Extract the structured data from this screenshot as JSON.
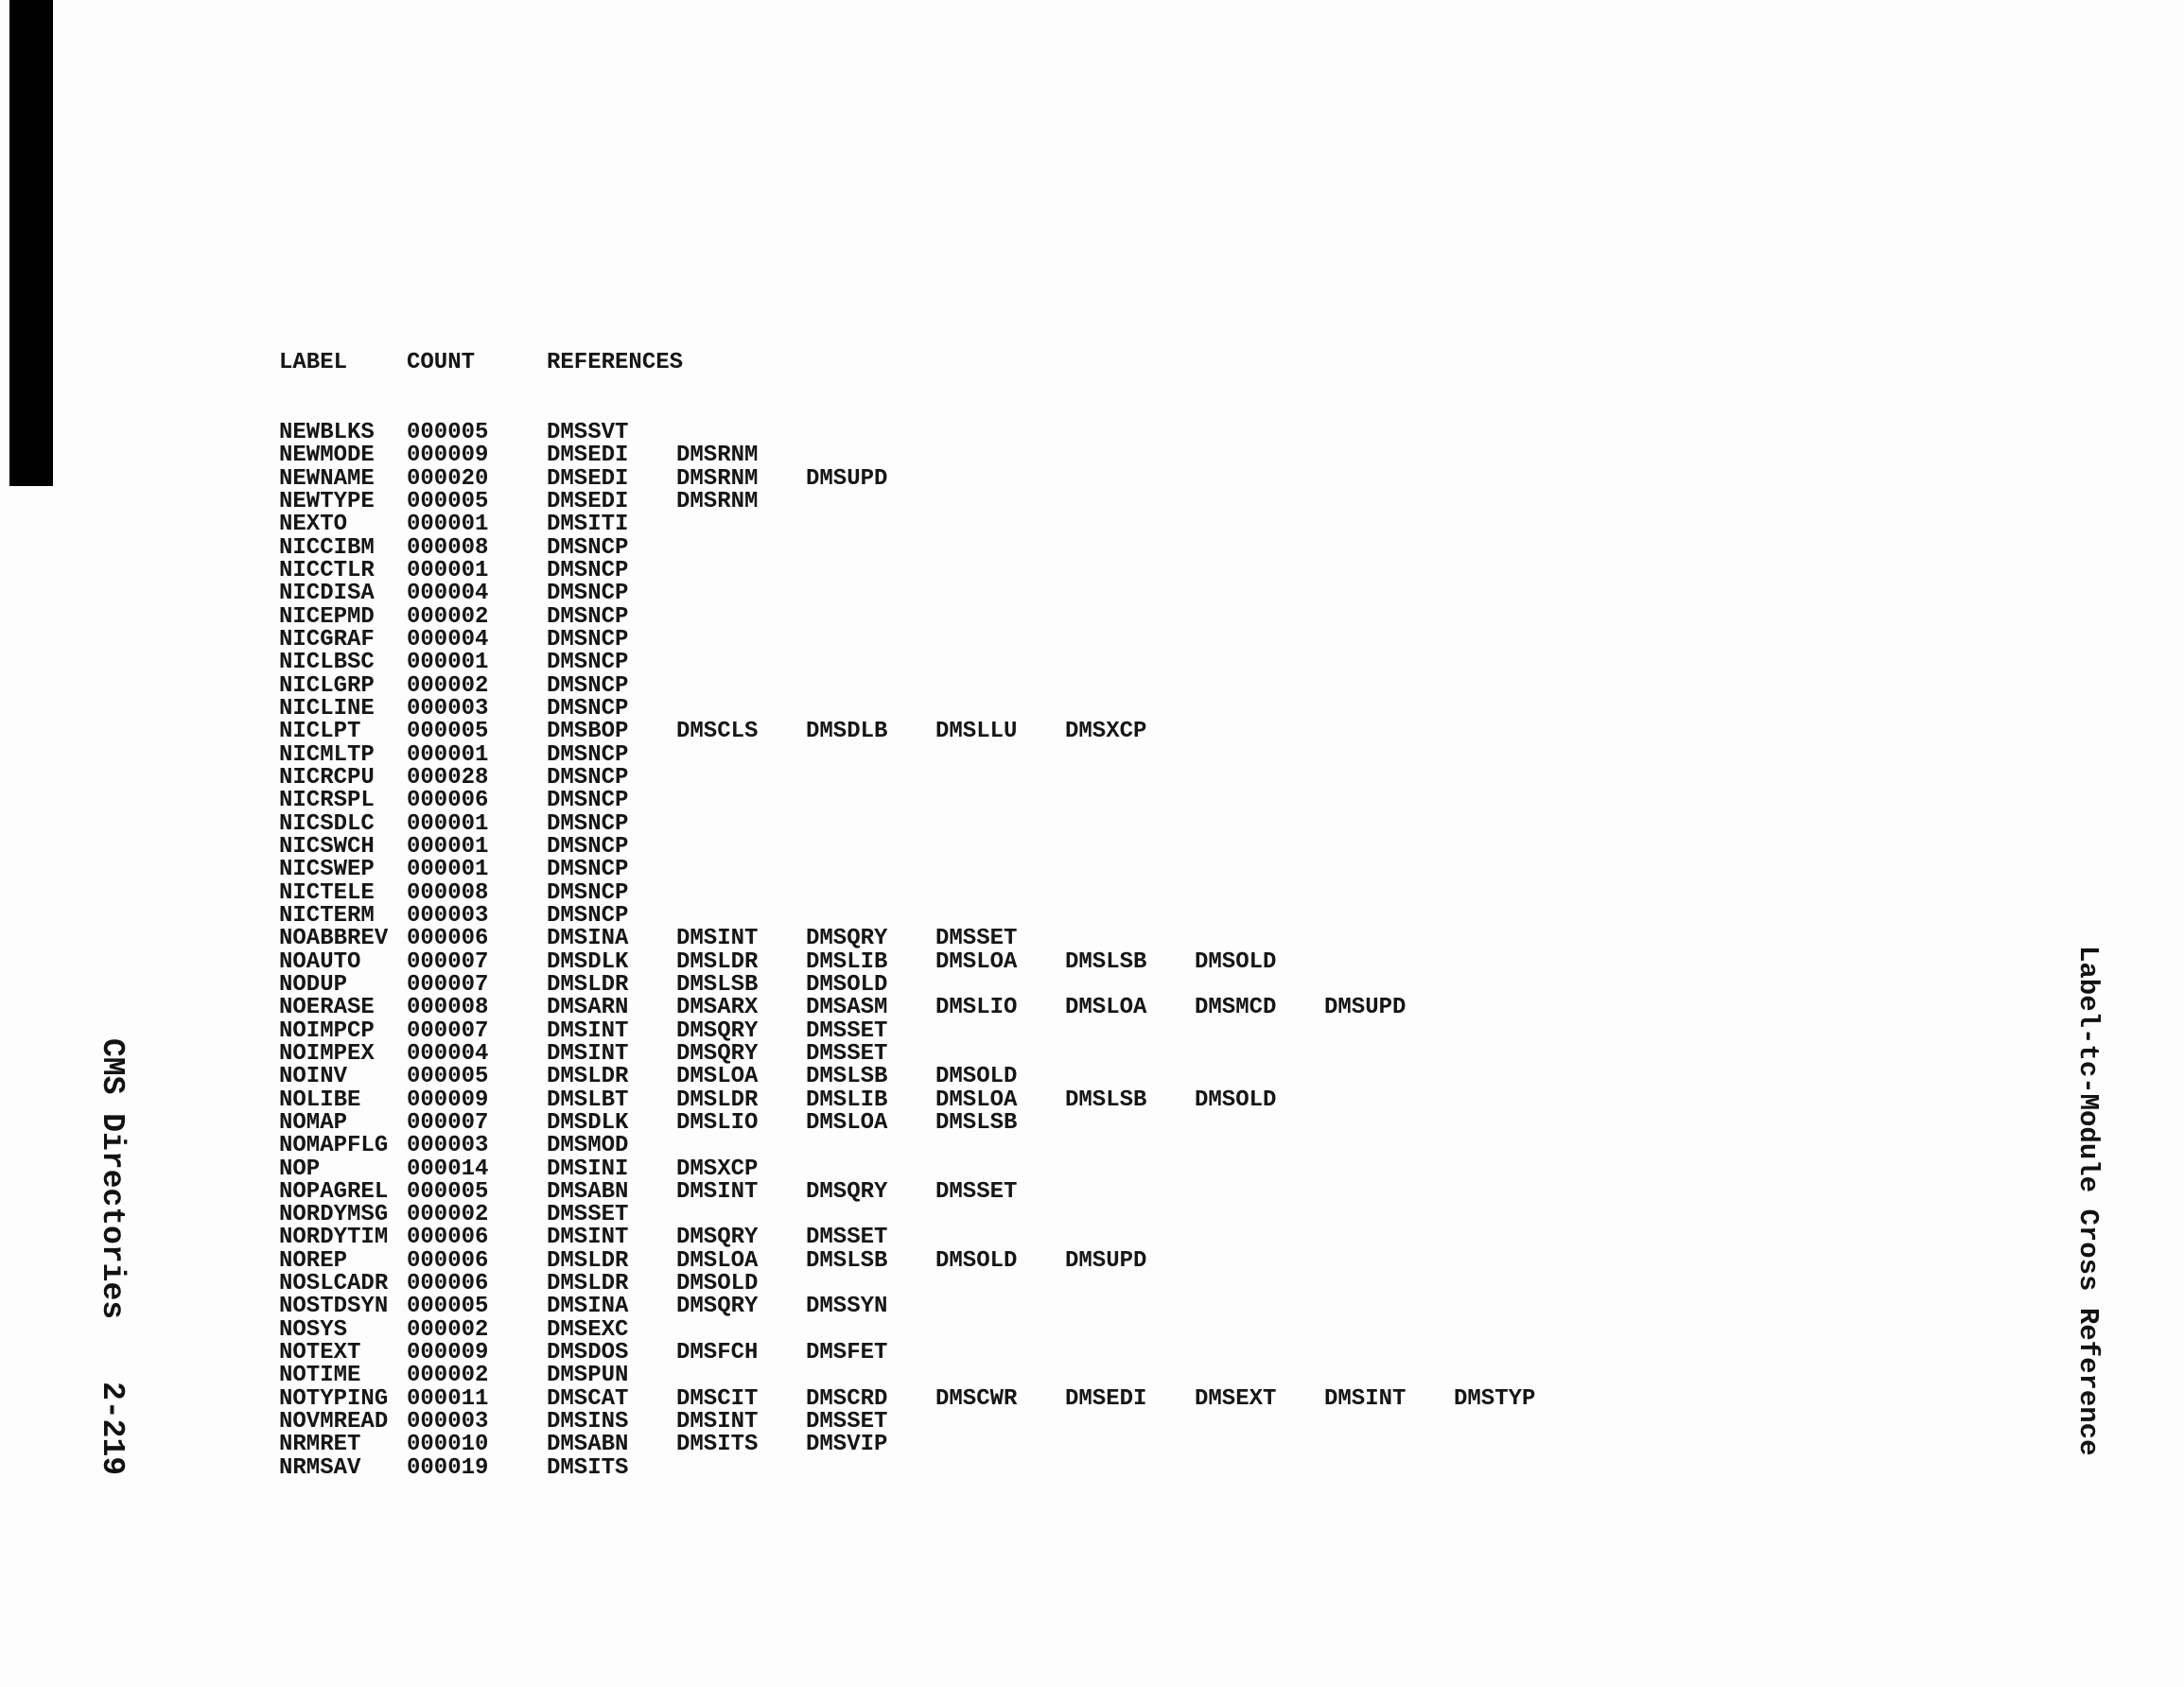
{
  "document": {
    "colors": {
      "ink": "#161616",
      "paper": "#fdfdfd",
      "scan_bar": "#000000"
    },
    "header": {
      "col_label": "LABEL",
      "col_count": "COUNT",
      "col_references": "REFERENCES"
    },
    "sidebar_left": {
      "title": "CMS Directories",
      "page_number": "2-219"
    },
    "sidebar_right": {
      "title": "Label-tc-Module Cross Reference"
    },
    "table": {
      "rows": [
        {
          "label": "NEWBLKS",
          "count": "000005",
          "refs": [
            "DMSSVT"
          ]
        },
        {
          "label": "NEWMODE",
          "count": "000009",
          "refs": [
            "DMSEDI",
            "DMSRNM"
          ]
        },
        {
          "label": "NEWNAME",
          "count": "000020",
          "refs": [
            "DMSEDI",
            "DMSRNM",
            "DMSUPD"
          ]
        },
        {
          "label": "NEWTYPE",
          "count": "000005",
          "refs": [
            "DMSEDI",
            "DMSRNM"
          ]
        },
        {
          "label": "NEXTO",
          "count": "000001",
          "refs": [
            "DMSITI"
          ]
        },
        {
          "label": "NICCIBM",
          "count": "000008",
          "refs": [
            "DMSNCP"
          ]
        },
        {
          "label": "NICCTLR",
          "count": "000001",
          "refs": [
            "DMSNCP"
          ]
        },
        {
          "label": "NICDISA",
          "count": "000004",
          "refs": [
            "DMSNCP"
          ]
        },
        {
          "label": "NICEPMD",
          "count": "000002",
          "refs": [
            "DMSNCP"
          ]
        },
        {
          "label": "NICGRAF",
          "count": "000004",
          "refs": [
            "DMSNCP"
          ]
        },
        {
          "label": "NICLBSC",
          "count": "000001",
          "refs": [
            "DMSNCP"
          ]
        },
        {
          "label": "NICLGRP",
          "count": "000002",
          "refs": [
            "DMSNCP"
          ]
        },
        {
          "label": "NICLINE",
          "count": "000003",
          "refs": [
            "DMSNCP"
          ]
        },
        {
          "label": "NICLPT",
          "count": "000005",
          "refs": [
            "DMSBOP",
            "DMSCLS",
            "DMSDLB",
            "DMSLLU",
            "DMSXCP"
          ]
        },
        {
          "label": "NICMLTP",
          "count": "000001",
          "refs": [
            "DMSNCP"
          ]
        },
        {
          "label": "NICRCPU",
          "count": "000028",
          "refs": [
            "DMSNCP"
          ]
        },
        {
          "label": "NICRSPL",
          "count": "000006",
          "refs": [
            "DMSNCP"
          ]
        },
        {
          "label": "NICSDLC",
          "count": "000001",
          "refs": [
            "DMSNCP"
          ]
        },
        {
          "label": "NICSWCH",
          "count": "000001",
          "refs": [
            "DMSNCP"
          ]
        },
        {
          "label": "NICSWEP",
          "count": "000001",
          "refs": [
            "DMSNCP"
          ]
        },
        {
          "label": "NICTELE",
          "count": "000008",
          "refs": [
            "DMSNCP"
          ]
        },
        {
          "label": "NICTERM",
          "count": "000003",
          "refs": [
            "DMSNCP"
          ]
        },
        {
          "label": "NOABBREV",
          "count": "000006",
          "refs": [
            "DMSINA",
            "DMSINT",
            "DMSQRY",
            "DMSSET"
          ]
        },
        {
          "label": "NOAUTO",
          "count": "000007",
          "refs": [
            "DMSDLK",
            "DMSLDR",
            "DMSLIB",
            "DMSLOA",
            "DMSLSB",
            "DMSOLD"
          ]
        },
        {
          "label": "NODUP",
          "count": "000007",
          "refs": [
            "DMSLDR",
            "DMSLSB",
            "DMSOLD"
          ]
        },
        {
          "label": "NOERASE",
          "count": "000008",
          "refs": [
            "DMSARN",
            "DMSARX",
            "DMSASM",
            "DMSLIO",
            "DMSLOA",
            "DMSMCD",
            "DMSUPD"
          ]
        },
        {
          "label": "NOIMPCP",
          "count": "000007",
          "refs": [
            "DMSINT",
            "DMSQRY",
            "DMSSET"
          ]
        },
        {
          "label": "NOIMPEX",
          "count": "000004",
          "refs": [
            "DMSINT",
            "DMSQRY",
            "DMSSET"
          ]
        },
        {
          "label": "NOINV",
          "count": "000005",
          "refs": [
            "DMSLDR",
            "DMSLOA",
            "DMSLSB",
            "DMSOLD"
          ]
        },
        {
          "label": "NOLIBE",
          "count": "000009",
          "refs": [
            "DMSLBT",
            "DMSLDR",
            "DMSLIB",
            "DMSLOA",
            "DMSLSB",
            "DMSOLD"
          ]
        },
        {
          "label": "NOMAP",
          "count": "000007",
          "refs": [
            "DMSDLK",
            "DMSLIO",
            "DMSLOA",
            "DMSLSB"
          ]
        },
        {
          "label": "NOMAPFLG",
          "count": "000003",
          "refs": [
            "DMSMOD"
          ]
        },
        {
          "label": "NOP",
          "count": "000014",
          "refs": [
            "DMSINI",
            "DMSXCP"
          ]
        },
        {
          "label": "NOPAGREL",
          "count": "000005",
          "refs": [
            "DMSABN",
            "DMSINT",
            "DMSQRY",
            "DMSSET"
          ]
        },
        {
          "label": "NORDYMSG",
          "count": "000002",
          "refs": [
            "DMSSET"
          ]
        },
        {
          "label": "NORDYTIM",
          "count": "000006",
          "refs": [
            "DMSINT",
            "DMSQRY",
            "DMSSET"
          ]
        },
        {
          "label": "NOREP",
          "count": "000006",
          "refs": [
            "DMSLDR",
            "DMSLOA",
            "DMSLSB",
            "DMSOLD",
            "DMSUPD"
          ]
        },
        {
          "label": "NOSLCADR",
          "count": "000006",
          "refs": [
            "DMSLDR",
            "DMSOLD"
          ]
        },
        {
          "label": "NOSTDSYN",
          "count": "000005",
          "refs": [
            "DMSINA",
            "DMSQRY",
            "DMSSYN"
          ]
        },
        {
          "label": "NOSYS",
          "count": "000002",
          "refs": [
            "DMSEXC"
          ]
        },
        {
          "label": "NOTEXT",
          "count": "000009",
          "refs": [
            "DMSDOS",
            "DMSFCH",
            "DMSFET"
          ]
        },
        {
          "label": "NOTIME",
          "count": "000002",
          "refs": [
            "DMSPUN"
          ]
        },
        {
          "label": "NOTYPING",
          "count": "000011",
          "refs": [
            "DMSCAT",
            "DMSCIT",
            "DMSCRD",
            "DMSCWR",
            "DMSEDI",
            "DMSEXT",
            "DMSINT",
            "DMSTYP"
          ]
        },
        {
          "label": "NOVMREAD",
          "count": "000003",
          "refs": [
            "DMSINS",
            "DMSINT",
            "DMSSET"
          ]
        },
        {
          "label": "NRMRET",
          "count": "000010",
          "refs": [
            "DMSABN",
            "DMSITS",
            "DMSVIP"
          ]
        },
        {
          "label": "NRMSAV",
          "count": "000019",
          "refs": [
            "DMSITS"
          ]
        }
      ]
    }
  }
}
